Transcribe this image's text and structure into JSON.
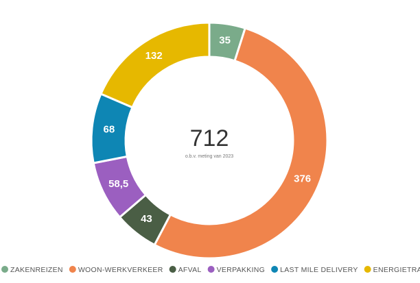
{
  "chart_data": {
    "type": "donut",
    "center_label": "712",
    "center_subtitle": "o.b.v. meting van 2023",
    "categories": [
      "ZAKENREIZEN",
      "WOON-WERKVERKEER",
      "AFVAL",
      "VERPAKKING",
      "LAST MILE DELIVERY",
      "ENERGIETRANSPORT"
    ],
    "values": [
      35,
      376,
      43,
      58.5,
      68,
      132
    ],
    "value_labels": [
      "35",
      "376",
      "43",
      "58,5",
      "68",
      "132"
    ],
    "colors": [
      "#7aab8a",
      "#f0844c",
      "#4a5e45",
      "#9b5fc0",
      "#0e86b4",
      "#e6b800"
    ],
    "legend": "bottom"
  }
}
